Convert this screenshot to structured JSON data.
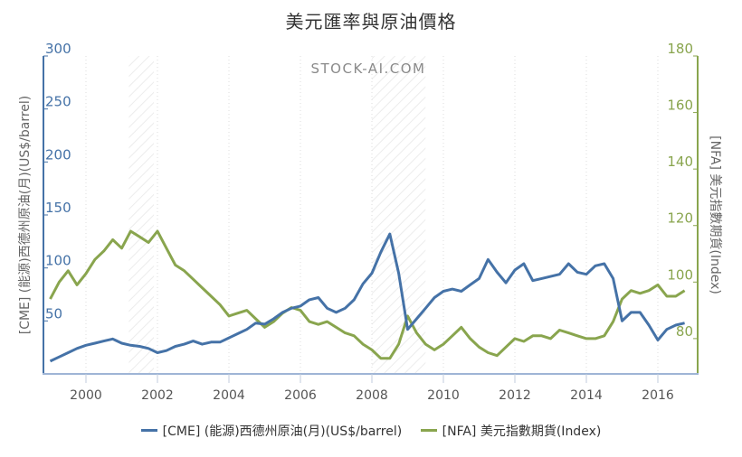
{
  "title": "美元匯率與原油價格",
  "watermark": "STOCK-AI.COM",
  "legend": [
    {
      "label": "[CME] (能源)西德州原油(月)(US$/barrel)",
      "color": "#4572a7"
    },
    {
      "label": "[NFA] 美元指數期貨(Index)",
      "color": "#89a54e"
    }
  ],
  "axes": {
    "left_title": "[CME] (能源)西德州原油(月)(US$/barrel)",
    "right_title": "[NFA] 美元指數期貨(Index)",
    "left_ticks": [
      "300",
      "250",
      "200",
      "150",
      "100",
      "50"
    ],
    "right_ticks": [
      "180",
      "160",
      "140",
      "120",
      "100",
      "80"
    ],
    "x_ticks": [
      "2000",
      "2002",
      "2004",
      "2006",
      "2008",
      "2010",
      "2012",
      "2014",
      "2016"
    ]
  },
  "colors": {
    "oil": "#4572a7",
    "usd": "#89a54e",
    "axis_left": "#4572a7",
    "axis_right": "#89a54e"
  },
  "chart_data": {
    "type": "line",
    "title": "美元匯率與原油價格",
    "xlabel": "",
    "ylabel": "[CME] (能源)西德州原油(月)(US$/barrel)",
    "y2label": "[NFA] 美元指數期貨(Index)",
    "xlim": [
      1998.9,
      2017.2
    ],
    "ylim": [
      0,
      300
    ],
    "y2lim": [
      67.5,
      180
    ],
    "grid": "vertical dotted at x ticks",
    "legend_position": "bottom",
    "shaded_periods": [
      [
        2001.2,
        2001.9
      ],
      [
        2008.0,
        2009.5
      ]
    ],
    "series": [
      {
        "name": "[CME] (能源)西德州原油(月)(US$/barrel)",
        "axis": "left",
        "x": [
          1999.0,
          1999.25,
          1999.5,
          1999.75,
          2000.0,
          2000.25,
          2000.5,
          2000.75,
          2001.0,
          2001.25,
          2001.5,
          2001.75,
          2002.0,
          2002.25,
          2002.5,
          2002.75,
          2003.0,
          2003.25,
          2003.5,
          2003.75,
          2004.0,
          2004.25,
          2004.5,
          2004.75,
          2005.0,
          2005.25,
          2005.5,
          2005.75,
          2006.0,
          2006.25,
          2006.5,
          2006.75,
          2007.0,
          2007.25,
          2007.5,
          2007.75,
          2008.0,
          2008.25,
          2008.5,
          2008.75,
          2009.0,
          2009.25,
          2009.5,
          2009.75,
          2010.0,
          2010.25,
          2010.5,
          2010.75,
          2011.0,
          2011.25,
          2011.5,
          2011.75,
          2012.0,
          2012.25,
          2012.5,
          2012.75,
          2013.0,
          2013.25,
          2013.5,
          2013.75,
          2014.0,
          2014.25,
          2014.5,
          2014.75,
          2015.0,
          2015.25,
          2015.5,
          2015.75,
          2016.0,
          2016.25,
          2016.5,
          2016.75
        ],
        "values": [
          12,
          16,
          20,
          24,
          27,
          29,
          31,
          33,
          29,
          27,
          26,
          24,
          20,
          22,
          26,
          28,
          31,
          28,
          30,
          30,
          34,
          38,
          42,
          48,
          47,
          52,
          58,
          62,
          64,
          70,
          72,
          62,
          58,
          62,
          70,
          85,
          95,
          115,
          132,
          95,
          42,
          52,
          62,
          72,
          78,
          80,
          78,
          84,
          90,
          108,
          96,
          86,
          98,
          104,
          88,
          90,
          92,
          94,
          104,
          96,
          94,
          102,
          104,
          90,
          50,
          58,
          58,
          46,
          32,
          42,
          46,
          48
        ]
      },
      {
        "name": "[NFA] 美元指數期貨(Index)",
        "axis": "right",
        "x": [
          1999.0,
          1999.25,
          1999.5,
          1999.75,
          2000.0,
          2000.25,
          2000.5,
          2000.75,
          2001.0,
          2001.25,
          2001.5,
          2001.75,
          2002.0,
          2002.25,
          2002.5,
          2002.75,
          2003.0,
          2003.25,
          2003.5,
          2003.75,
          2004.0,
          2004.25,
          2004.5,
          2004.75,
          2005.0,
          2005.25,
          2005.5,
          2005.75,
          2006.0,
          2006.25,
          2006.5,
          2006.75,
          2007.0,
          2007.25,
          2007.5,
          2007.75,
          2008.0,
          2008.25,
          2008.5,
          2008.75,
          2009.0,
          2009.25,
          2009.5,
          2009.75,
          2010.0,
          2010.25,
          2010.5,
          2010.75,
          2011.0,
          2011.25,
          2011.5,
          2011.75,
          2012.0,
          2012.25,
          2012.5,
          2012.75,
          2013.0,
          2013.25,
          2013.5,
          2013.75,
          2014.0,
          2014.25,
          2014.5,
          2014.75,
          2015.0,
          2015.25,
          2015.5,
          2015.75,
          2016.0,
          2016.25,
          2016.5,
          2016.75
        ],
        "values": [
          94,
          100,
          104,
          99,
          103,
          108,
          111,
          115,
          112,
          118,
          116,
          114,
          118,
          112,
          106,
          104,
          101,
          98,
          95,
          92,
          88,
          89,
          90,
          87,
          84,
          86,
          89,
          91,
          90,
          86,
          85,
          86,
          84,
          82,
          81,
          78,
          76,
          73,
          73,
          78,
          88,
          82,
          78,
          76,
          78,
          81,
          84,
          80,
          77,
          75,
          74,
          77,
          80,
          79,
          81,
          81,
          80,
          83,
          82,
          81,
          80,
          80,
          81,
          86,
          94,
          97,
          96,
          97,
          99,
          95,
          95,
          97
        ]
      }
    ]
  }
}
